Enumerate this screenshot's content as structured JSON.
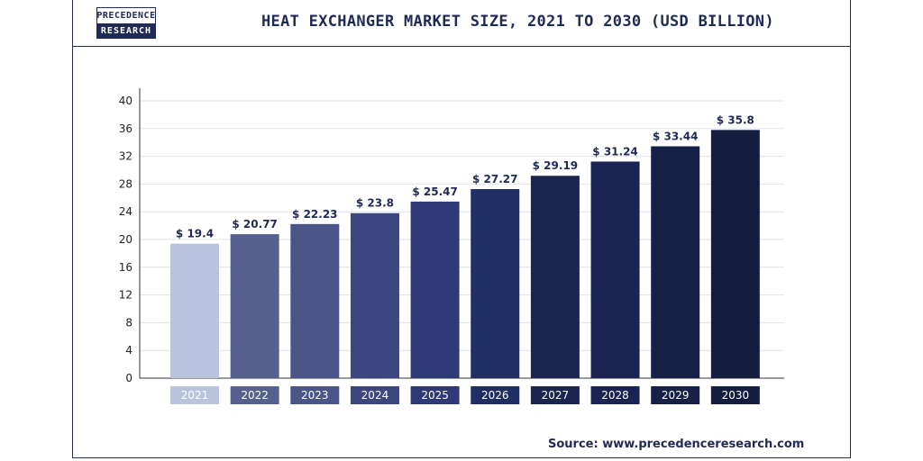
{
  "header": {
    "logo_top": "PRECEDENCE",
    "logo_bottom": "RESEARCH",
    "title": "HEAT EXCHANGER MARKET SIZE, 2021 TO 2030 (USD BILLION)"
  },
  "footer": {
    "source": "Source: www.precedenceresearch.com"
  },
  "chart_data": {
    "type": "bar",
    "title": "HEAT EXCHANGER MARKET SIZE, 2021 TO 2030 (USD BILLION)",
    "xlabel": "",
    "ylabel": "",
    "categories": [
      "2021",
      "2022",
      "2023",
      "2024",
      "2025",
      "2026",
      "2027",
      "2028",
      "2029",
      "2030"
    ],
    "values": [
      19.4,
      20.77,
      22.23,
      23.8,
      25.47,
      27.27,
      29.19,
      31.24,
      33.44,
      35.8
    ],
    "value_labels": [
      "$ 19.4",
      "$ 20.77",
      "$ 22.23",
      "$ 23.8",
      "$ 25.47",
      "$ 27.27",
      "$ 29.19",
      "$ 31.24",
      "$ 33.44",
      "$ 35.8"
    ],
    "ylim": [
      0,
      40
    ],
    "yticks": [
      "0",
      "4",
      "8",
      "12",
      "16",
      "20",
      "24",
      "28",
      "32",
      "36",
      "40"
    ],
    "grid": true,
    "legend": "none",
    "colors": [
      "#b9c3de",
      "#56618f",
      "#4a5589",
      "#3c4680",
      "#2e3a78",
      "#1f2f63",
      "#1b2550",
      "#1a2352",
      "#172148",
      "#141c3f"
    ]
  }
}
